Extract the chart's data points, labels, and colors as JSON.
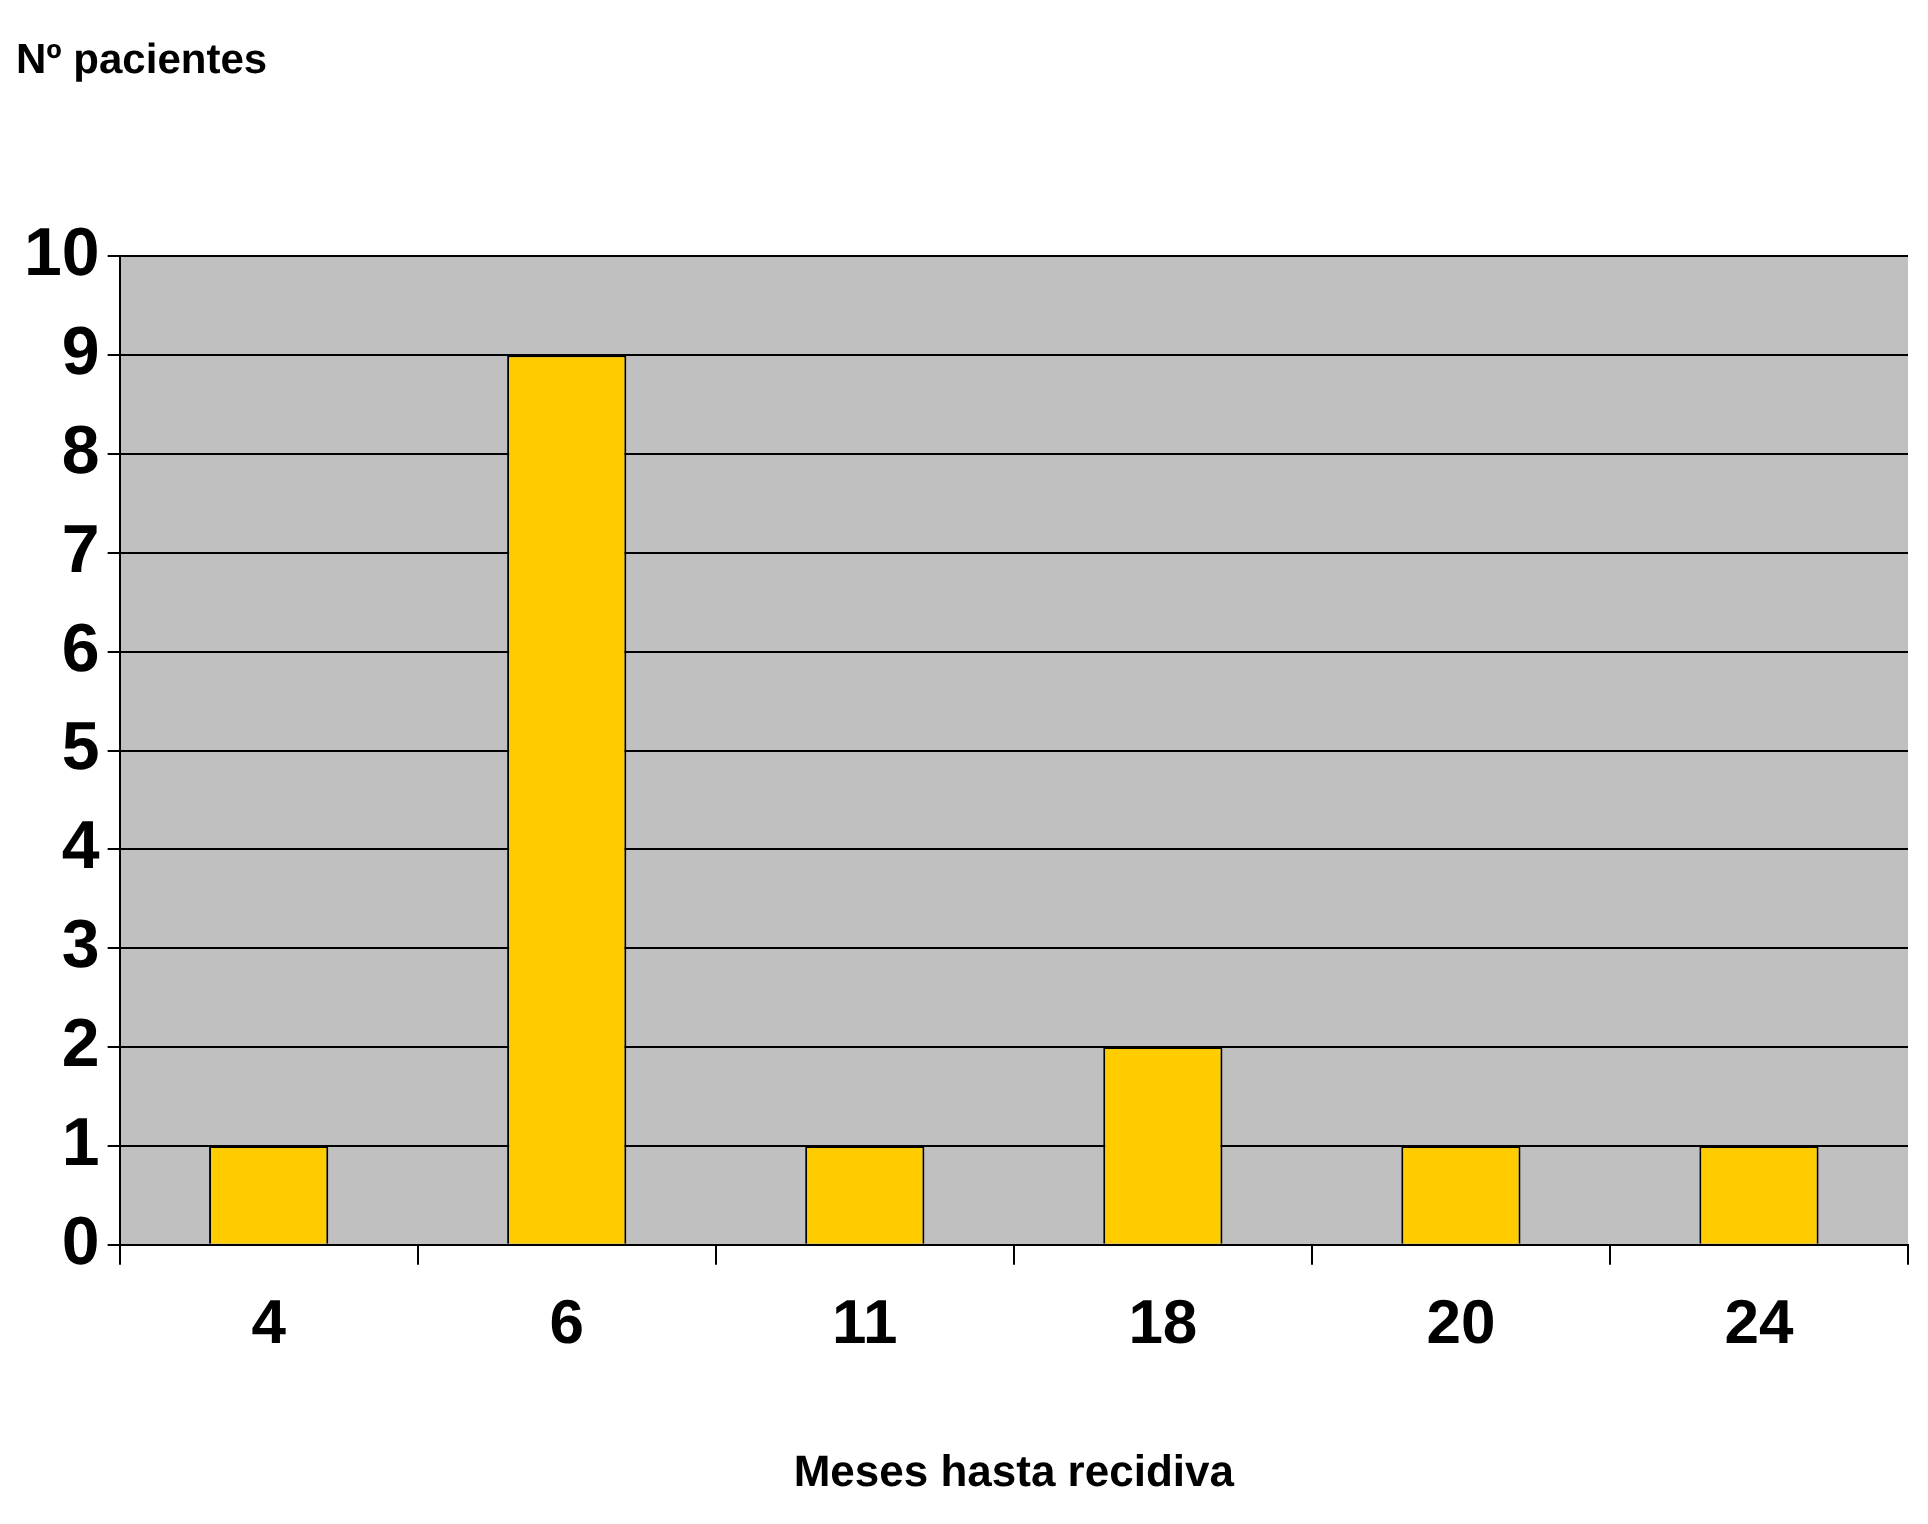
{
  "chart_data": {
    "type": "bar",
    "xlabel": "Meses hasta recidiva",
    "ylabel": "Nº pacientes",
    "categories": [
      "4",
      "6",
      "11",
      "18",
      "20",
      "24"
    ],
    "values": [
      1,
      9,
      1,
      2,
      1,
      1
    ],
    "color": "#ffcc00",
    "ylim": [
      0,
      10
    ],
    "yticks": [
      0,
      1,
      2,
      3,
      4,
      5,
      6,
      7,
      8,
      9,
      10
    ],
    "grid": "y"
  }
}
